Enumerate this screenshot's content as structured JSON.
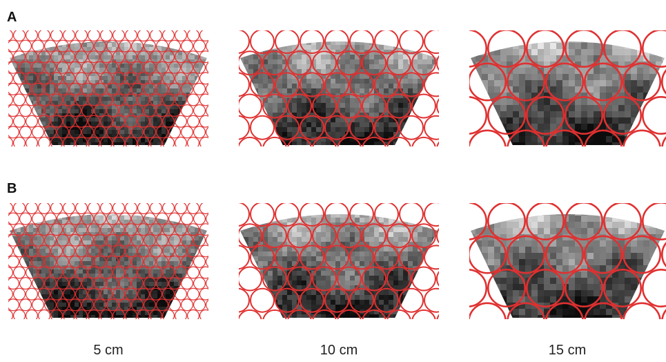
{
  "rows": [
    {
      "label": "A",
      "panels": [
        {
          "seed": 11
        },
        {
          "seed": 23
        },
        {
          "seed": 37
        }
      ]
    },
    {
      "label": "B",
      "panels": [
        {
          "seed": 51
        },
        {
          "seed": 67
        },
        {
          "seed": 83
        }
      ]
    }
  ],
  "captions": [
    "5 cm",
    "10 cm",
    "15 cm"
  ],
  "colors": {
    "circle": "#e03030",
    "background": "#ffffff"
  }
}
